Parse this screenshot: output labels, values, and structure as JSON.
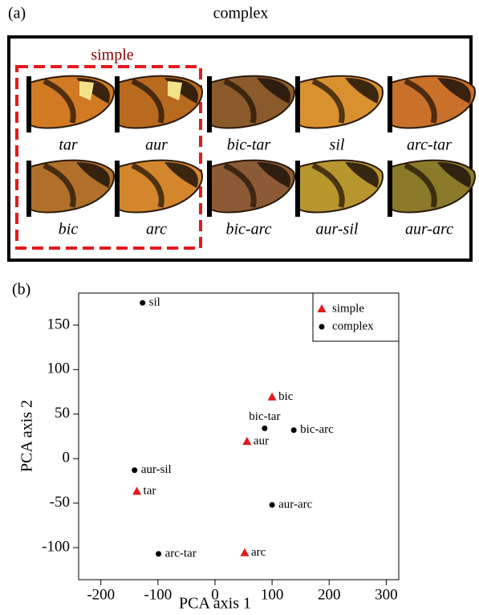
{
  "panel_a": {
    "label": "(a)",
    "title": "complex",
    "box_label": "simple",
    "labels": [
      "tar",
      "aur",
      "bic-tar",
      "sil",
      "arc-tar",
      "bic",
      "arc",
      "bic-arc",
      "aur-sil",
      "aur-arc"
    ]
  },
  "chart_data": {
    "type": "scatter",
    "panel_label": "(b)",
    "xlabel": "PCA axis 1",
    "ylabel": "PCA axis 2",
    "xlim": [
      -239,
      322
    ],
    "ylim": [
      -136,
      186
    ],
    "xticks": [
      -200,
      -100,
      0,
      100,
      200,
      300
    ],
    "yticks": [
      -100,
      -50,
      0,
      50,
      100,
      150
    ],
    "legend": "upper right",
    "series": [
      {
        "name": "simple",
        "color": "#e31a1c",
        "marker": "triangle",
        "labels": [
          "tar",
          "aur",
          "bic",
          "arc"
        ],
        "x": [
          -137,
          56,
          100,
          52
        ],
        "y": [
          -37,
          19,
          69,
          -106
        ]
      },
      {
        "name": "complex",
        "color": "#000000",
        "marker": "circle",
        "labels": [
          "sil",
          "bic-tar",
          "bic-arc",
          "aur-sil",
          "aur-arc",
          "arc-tar"
        ],
        "x": [
          -127,
          87,
          138,
          -141,
          100,
          -99
        ],
        "y": [
          175,
          34,
          32,
          -13,
          -52,
          -107
        ]
      }
    ]
  }
}
